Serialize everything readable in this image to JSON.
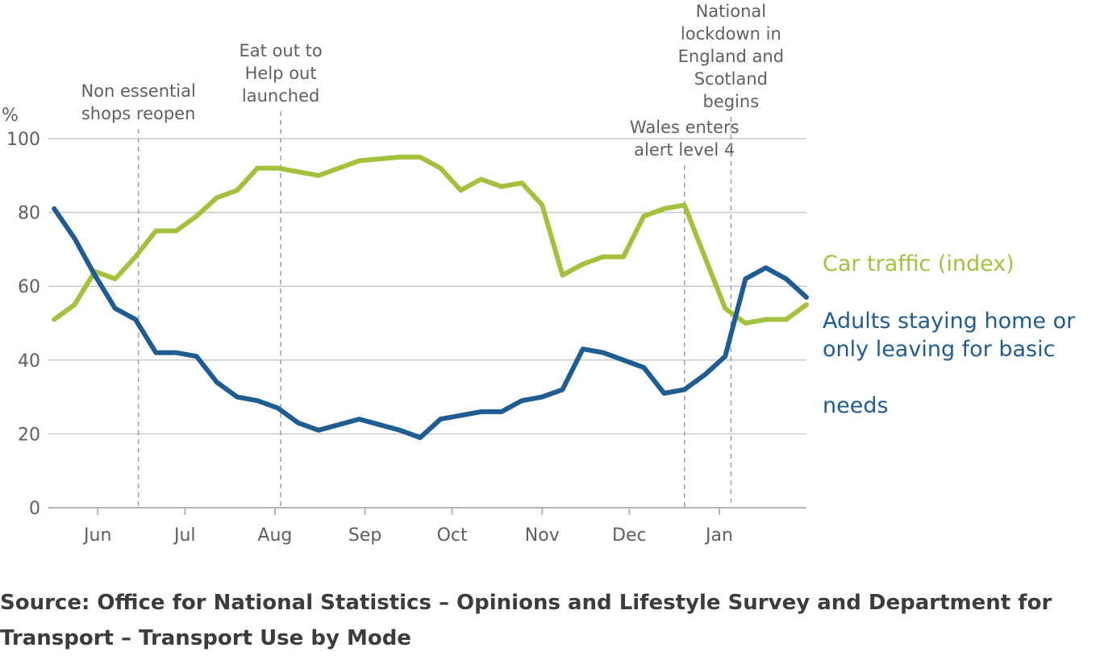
{
  "chart_data": {
    "type": "line",
    "ylabel": "%",
    "ylim": [
      0,
      100
    ],
    "yticks": [
      "0",
      "20",
      "40",
      "60",
      "80",
      "100"
    ],
    "x_range": [
      "2020-05-15",
      "2021-01-31"
    ],
    "xticks": [
      {
        "label": "Jun",
        "date": "2020-06-01"
      },
      {
        "label": "Jul",
        "date": "2020-07-01"
      },
      {
        "label": "Aug",
        "date": "2020-08-01"
      },
      {
        "label": "Sep",
        "date": "2020-09-01"
      },
      {
        "label": "Oct",
        "date": "2020-10-01"
      },
      {
        "label": "Nov",
        "date": "2020-11-01"
      },
      {
        "label": "Dec",
        "date": "2020-12-01"
      },
      {
        "label": "Jan",
        "date": "2021-01-01"
      }
    ],
    "grid": true,
    "annotations": [
      {
        "date": "2020-06-15",
        "lines": [
          "Non essential",
          "shops reopen"
        ]
      },
      {
        "date": "2020-08-03",
        "lines": [
          "Eat out to",
          "Help out",
          "launched"
        ]
      },
      {
        "date": "2020-12-20",
        "lines": [
          "Wales enters",
          "alert level 4"
        ]
      },
      {
        "date": "2021-01-05",
        "lines": [
          "National",
          "lockdown in",
          "England and",
          "Scotland",
          "begins"
        ]
      }
    ],
    "series": [
      {
        "name": "Car traffic (index)",
        "color": "#a3c13c",
        "points": [
          [
            "2020-05-17",
            51
          ],
          [
            "2020-05-24",
            55
          ],
          [
            "2020-05-31",
            64
          ],
          [
            "2020-06-07",
            62
          ],
          [
            "2020-06-14",
            68
          ],
          [
            "2020-06-21",
            75
          ],
          [
            "2020-06-28",
            75
          ],
          [
            "2020-07-05",
            79
          ],
          [
            "2020-07-12",
            84
          ],
          [
            "2020-07-19",
            86
          ],
          [
            "2020-07-26",
            92
          ],
          [
            "2020-08-02",
            92
          ],
          [
            "2020-08-16",
            90
          ],
          [
            "2020-08-30",
            94
          ],
          [
            "2020-09-13",
            95
          ],
          [
            "2020-09-20",
            95
          ],
          [
            "2020-09-27",
            92
          ],
          [
            "2020-10-04",
            86
          ],
          [
            "2020-10-11",
            89
          ],
          [
            "2020-10-18",
            87
          ],
          [
            "2020-10-25",
            88
          ],
          [
            "2020-11-01",
            82
          ],
          [
            "2020-11-08",
            63
          ],
          [
            "2020-11-15",
            66
          ],
          [
            "2020-11-22",
            68
          ],
          [
            "2020-11-29",
            68
          ],
          [
            "2020-12-06",
            79
          ],
          [
            "2020-12-13",
            81
          ],
          [
            "2020-12-20",
            82
          ],
          [
            "2020-12-27",
            68
          ],
          [
            "2021-01-03",
            54
          ],
          [
            "2021-01-10",
            50
          ],
          [
            "2021-01-17",
            51
          ],
          [
            "2021-01-24",
            51
          ],
          [
            "2021-01-31",
            55
          ]
        ]
      },
      {
        "name": "Adults staying home or only leaving for basic needs",
        "color": "#1f5c91",
        "points": [
          [
            "2020-05-17",
            81
          ],
          [
            "2020-05-24",
            73
          ],
          [
            "2020-05-31",
            63
          ],
          [
            "2020-06-07",
            54
          ],
          [
            "2020-06-14",
            51
          ],
          [
            "2020-06-21",
            42
          ],
          [
            "2020-06-28",
            42
          ],
          [
            "2020-07-05",
            41
          ],
          [
            "2020-07-12",
            34
          ],
          [
            "2020-07-19",
            30
          ],
          [
            "2020-07-26",
            29
          ],
          [
            "2020-08-02",
            27
          ],
          [
            "2020-08-09",
            23
          ],
          [
            "2020-08-16",
            21
          ],
          [
            "2020-08-30",
            24
          ],
          [
            "2020-09-13",
            21
          ],
          [
            "2020-09-20",
            19
          ],
          [
            "2020-09-27",
            24
          ],
          [
            "2020-10-11",
            26
          ],
          [
            "2020-10-18",
            26
          ],
          [
            "2020-10-25",
            29
          ],
          [
            "2020-11-01",
            30
          ],
          [
            "2020-11-08",
            32
          ],
          [
            "2020-11-15",
            43
          ],
          [
            "2020-11-22",
            42
          ],
          [
            "2020-11-29",
            40
          ],
          [
            "2020-12-06",
            38
          ],
          [
            "2020-12-13",
            31
          ],
          [
            "2020-12-20",
            32
          ],
          [
            "2020-12-27",
            36
          ],
          [
            "2021-01-03",
            41
          ],
          [
            "2021-01-10",
            62
          ],
          [
            "2021-01-17",
            65
          ],
          [
            "2021-01-24",
            62
          ],
          [
            "2021-01-31",
            57
          ]
        ]
      }
    ],
    "legend": {
      "car_label": "Car traffic (index)",
      "adults_lines": [
        "Adults staying home or",
        "only leaving for basic",
        "needs"
      ]
    },
    "colors": {
      "grid": "#c8c8c8",
      "axis": "#b4b4b4",
      "annotation_line": "#a0a0a0",
      "tick_text": "#5f5f5f"
    }
  },
  "source_text": "Source: Office for National Statistics – Opinions and Lifestyle Survey and Department for Transport – Transport Use by Mode"
}
